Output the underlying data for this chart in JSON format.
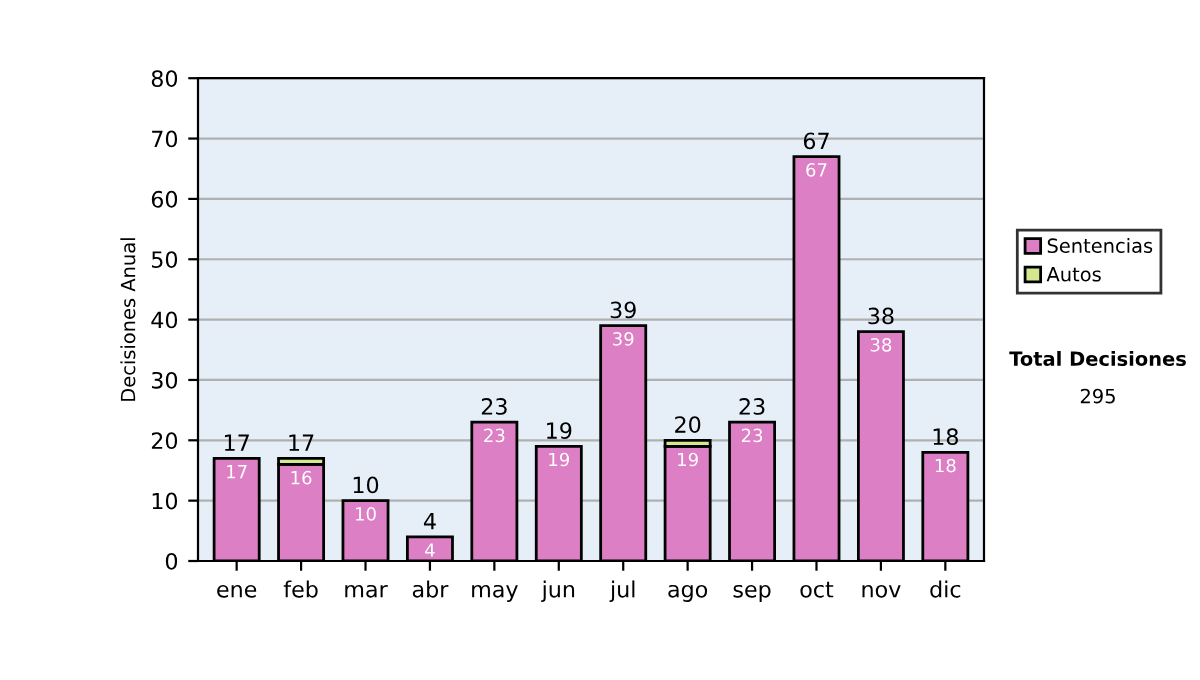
{
  "chart_data": {
    "type": "bar",
    "stacked": true,
    "ylabel": "Decisiones Anual",
    "categories": [
      "ene",
      "feb",
      "mar",
      "abr",
      "may",
      "jun",
      "jul",
      "ago",
      "sep",
      "oct",
      "nov",
      "dic"
    ],
    "series": [
      {
        "name": "Sentencias",
        "color": "#dd7fc4",
        "values": [
          17,
          16,
          10,
          4,
          23,
          19,
          39,
          19,
          23,
          67,
          38,
          18
        ],
        "value_labels": [
          "17",
          "16",
          "10",
          "4",
          "23",
          "19",
          "39",
          "19",
          "23",
          "67",
          "38",
          "18"
        ]
      },
      {
        "name": "Autos",
        "color": "#d4e88f",
        "values": [
          null,
          1,
          null,
          null,
          null,
          null,
          null,
          1,
          null,
          null,
          null,
          null
        ]
      }
    ],
    "totals": [
      "17",
      "17",
      "10",
      "4",
      "23",
      "19",
      "39",
      "20",
      "23",
      "67",
      "38",
      "18"
    ],
    "ylim": [
      0,
      80
    ],
    "yticks": [
      0,
      10,
      20,
      30,
      40,
      50,
      60,
      70,
      80
    ],
    "grid": "y",
    "legend": "right",
    "annotations": [
      "Total Decisiones",
      "295"
    ]
  }
}
